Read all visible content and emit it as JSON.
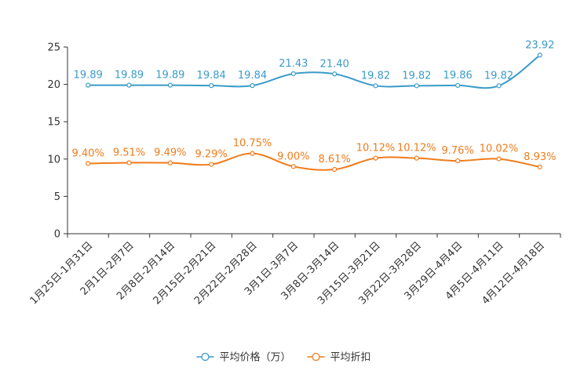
{
  "chart_data": {
    "type": "line",
    "categories": [
      "1月25日-1月31日",
      "2月1日-2月7日",
      "2月8日-2月14日",
      "2月15日-2月21日",
      "2月22日-2月28日",
      "3月1日-3月7日",
      "3月8日-3月14日",
      "3月15日-3月21日",
      "3月22日-3月28日",
      "3月29日-4月4日",
      "4月5日-4月11日",
      "4月12日-4月18日"
    ],
    "ylim": [
      0,
      25
    ],
    "yticks": [
      0,
      5,
      10,
      15,
      20,
      25
    ],
    "smooth": true,
    "series": [
      {
        "name": "平均价格（万）",
        "color": "#3a9bc9",
        "values": [
          19.89,
          19.89,
          19.89,
          19.84,
          19.84,
          21.43,
          21.4,
          19.82,
          19.82,
          19.86,
          19.82,
          23.92
        ],
        "labels": [
          "19.89",
          "19.89",
          "19.89",
          "19.84",
          "19.84",
          "21.43",
          "21.40",
          "19.82",
          "19.82",
          "19.86",
          "19.82",
          "23.92"
        ]
      },
      {
        "name": "平均折扣",
        "color": "#f07c1b",
        "values": [
          9.4,
          9.51,
          9.49,
          9.29,
          10.75,
          9.0,
          8.61,
          10.12,
          10.12,
          9.76,
          10.02,
          8.93
        ],
        "labels": [
          "9.40%",
          "9.51%",
          "9.49%",
          "9.29%",
          "10.75%",
          "9.00%",
          "8.61%",
          "10.12%",
          "10.12%",
          "9.76%",
          "10.02%",
          "8.93%"
        ]
      }
    ]
  }
}
